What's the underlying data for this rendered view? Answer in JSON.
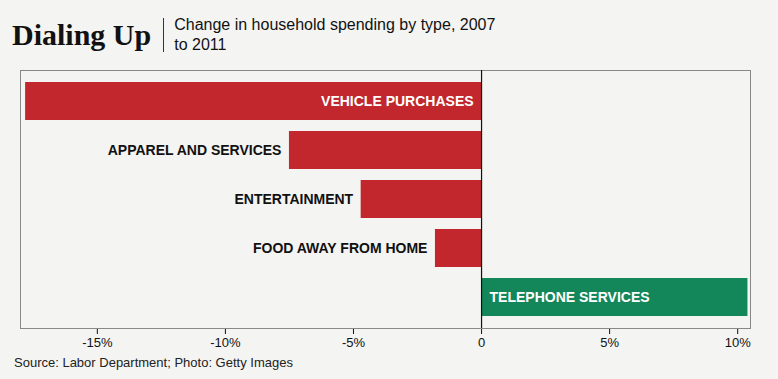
{
  "chart_data": {
    "type": "bar",
    "title": "Dialing Up",
    "subtitle": "Change in household spending by type, 2007 to 2011",
    "source": "Source: Labor Department; Photo: Getty Images",
    "orientation": "horizontal",
    "categories": [
      "VEHICLE PURCHASES",
      "APPAREL AND SERVICES",
      "ENTERTAINMENT",
      "FOOD AWAY FROM HOME",
      "TELEPHONE SERVICES"
    ],
    "values": [
      -17.8,
      -7.5,
      -4.7,
      -1.8,
      10.4
    ],
    "colors": [
      "#c1272d",
      "#c1272d",
      "#c1272d",
      "#c1272d",
      "#14875a"
    ],
    "xlim": [
      -18,
      10.5
    ],
    "xticks": [
      {
        "value": -15,
        "label": "-15%"
      },
      {
        "value": -10,
        "label": "-10%"
      },
      {
        "value": -5,
        "label": "-5%"
      },
      0,
      {
        "value": 5,
        "label": "5%"
      },
      {
        "value": 10,
        "label": "10%"
      }
    ],
    "tick_labels": "x",
    "grid": false
  }
}
